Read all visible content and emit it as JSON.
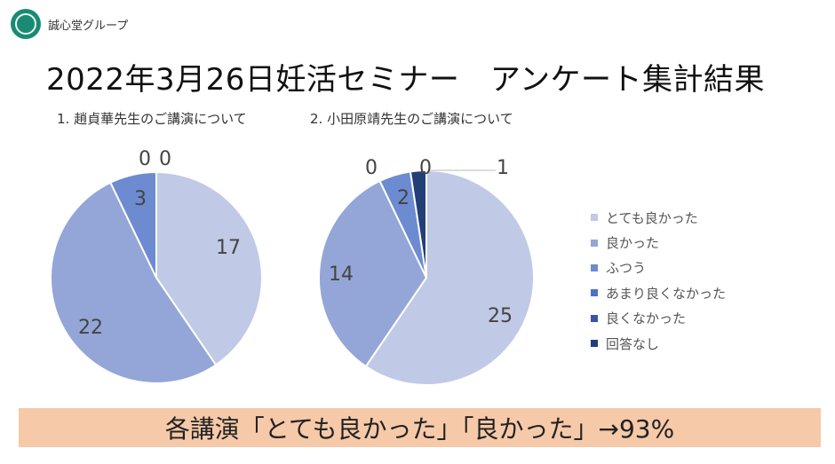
{
  "header": {
    "org_name": "誠心堂グループ"
  },
  "title": "2022年3月26日妊活セミナー　アンケート集計結果",
  "legend": {
    "items": [
      {
        "label": "とても良かった",
        "color": "#c0c9e5"
      },
      {
        "label": "良かった",
        "color": "#94a6d7"
      },
      {
        "label": "ふつう",
        "color": "#6d8bd1"
      },
      {
        "label": "あまり良くなかった",
        "color": "#4a72c8"
      },
      {
        "label": "良くなかった",
        "color": "#3457aa"
      },
      {
        "label": "回答なし",
        "color": "#223f78"
      }
    ]
  },
  "chart_data": [
    {
      "type": "pie",
      "title": "1. 趙貞華先生のご講演について",
      "categories": [
        "とても良かった",
        "良かった",
        "ふつう",
        "あまり良くなかった",
        "良くなかった",
        "回答なし"
      ],
      "values": [
        17,
        22,
        3,
        0,
        0,
        0
      ],
      "labels": [
        "17",
        "22",
        "3",
        "0",
        "0",
        ""
      ]
    },
    {
      "type": "pie",
      "title": "2. 小田原靖先生のご講演について",
      "categories": [
        "とても良かった",
        "良かった",
        "ふつう",
        "あまり良くなかった",
        "良くなかった",
        "回答なし"
      ],
      "values": [
        25,
        14,
        2,
        0,
        0,
        1
      ],
      "labels": [
        "25",
        "14",
        "2",
        "0",
        "0",
        "1"
      ]
    }
  ],
  "banner": "各講演「とても良かった」「良かった」→93%"
}
